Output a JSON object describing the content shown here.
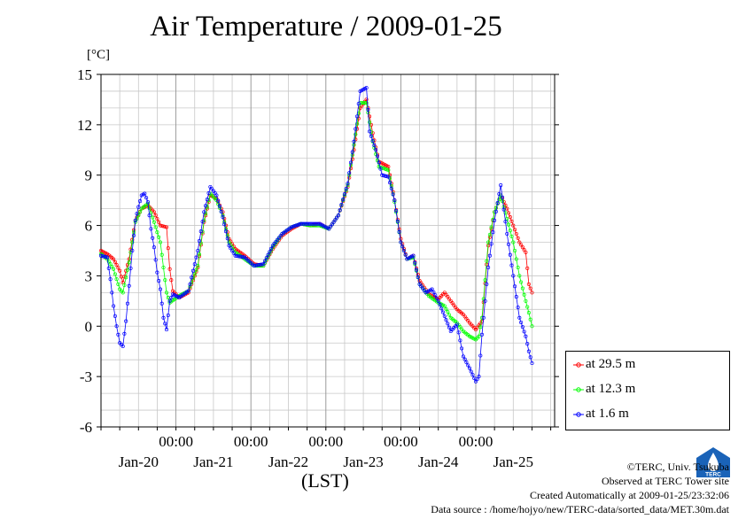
{
  "chart_data": {
    "type": "line",
    "title": "Air Temperature / 2009-01-25",
    "unit": "[°C]",
    "xlabel": "(LST)",
    "ylim": [
      -6,
      15
    ],
    "yticks": [
      15,
      12,
      9,
      6,
      3,
      0,
      -3,
      -6
    ],
    "xticks": [
      {
        "time": "00:00",
        "date": "Jan-20"
      },
      {
        "time": "00:00",
        "date": "Jan-21"
      },
      {
        "time": "00:00",
        "date": "Jan-22"
      },
      {
        "time": "00:00",
        "date": "Jan-23"
      },
      {
        "time": "00:00",
        "date": "Jan-24"
      },
      {
        "time": "00:00",
        "date": "Jan-25"
      }
    ],
    "x_range_hours": [
      0,
      144
    ],
    "grid": true,
    "legend_position": "right",
    "series": [
      {
        "name": "at 29.5 m",
        "color": "#ff0000",
        "points": [
          [
            0,
            4.5
          ],
          [
            2,
            4.3
          ],
          [
            4,
            4.0
          ],
          [
            6,
            3.3
          ],
          [
            7,
            2.6
          ],
          [
            9,
            4.0
          ],
          [
            11,
            6.3
          ],
          [
            13,
            7.0
          ],
          [
            15,
            7.2
          ],
          [
            17,
            6.8
          ],
          [
            19,
            6.0
          ],
          [
            21,
            5.9
          ],
          [
            22,
            3.4
          ],
          [
            23,
            2.1
          ],
          [
            25,
            1.7
          ],
          [
            28,
            2.0
          ],
          [
            31,
            3.5
          ],
          [
            33,
            6.2
          ],
          [
            35,
            7.8
          ],
          [
            37,
            7.6
          ],
          [
            39,
            6.8
          ],
          [
            41,
            5.2
          ],
          [
            43,
            4.6
          ],
          [
            46,
            4.2
          ],
          [
            49,
            3.7
          ],
          [
            52,
            3.6
          ],
          [
            55,
            4.6
          ],
          [
            58,
            5.4
          ],
          [
            61,
            5.8
          ],
          [
            64,
            6.1
          ],
          [
            67,
            6.0
          ],
          [
            70,
            6.1
          ],
          [
            73,
            5.8
          ],
          [
            76,
            6.6
          ],
          [
            79,
            8.3
          ],
          [
            81,
            10.5
          ],
          [
            83,
            13.0
          ],
          [
            85,
            13.5
          ],
          [
            87,
            11.5
          ],
          [
            89,
            9.8
          ],
          [
            92,
            9.5
          ],
          [
            94,
            7.5
          ],
          [
            96,
            5.2
          ],
          [
            98,
            4.0
          ],
          [
            100,
            4.2
          ],
          [
            102,
            2.7
          ],
          [
            105,
            1.9
          ],
          [
            108,
            1.6
          ],
          [
            110,
            2.0
          ],
          [
            112,
            1.5
          ],
          [
            114,
            1.0
          ],
          [
            116,
            0.7
          ],
          [
            118,
            0.2
          ],
          [
            120,
            -0.2
          ],
          [
            122,
            0.3
          ],
          [
            124,
            4.8
          ],
          [
            126,
            6.8
          ],
          [
            128,
            7.8
          ],
          [
            130,
            7.0
          ],
          [
            132,
            6.0
          ],
          [
            134,
            5.0
          ],
          [
            136,
            4.4
          ],
          [
            137,
            2.5
          ],
          [
            138,
            2.0
          ]
        ]
      },
      {
        "name": "at 12.3 m",
        "color": "#00ff00",
        "points": [
          [
            0,
            4.3
          ],
          [
            2,
            4.0
          ],
          [
            4,
            3.4
          ],
          [
            6,
            2.2
          ],
          [
            7,
            2.0
          ],
          [
            9,
            3.8
          ],
          [
            11,
            6.2
          ],
          [
            13,
            7.0
          ],
          [
            15,
            7.3
          ],
          [
            17,
            6.2
          ],
          [
            19,
            5.0
          ],
          [
            20,
            3.5
          ],
          [
            21,
            2.0
          ],
          [
            22,
            1.4
          ],
          [
            25,
            1.8
          ],
          [
            28,
            2.1
          ],
          [
            31,
            3.6
          ],
          [
            33,
            6.3
          ],
          [
            35,
            7.9
          ],
          [
            37,
            7.5
          ],
          [
            39,
            6.6
          ],
          [
            41,
            5.0
          ],
          [
            43,
            4.4
          ],
          [
            46,
            4.0
          ],
          [
            49,
            3.6
          ],
          [
            52,
            3.6
          ],
          [
            55,
            4.7
          ],
          [
            58,
            5.5
          ],
          [
            61,
            5.9
          ],
          [
            64,
            6.1
          ],
          [
            67,
            6.0
          ],
          [
            70,
            6.0
          ],
          [
            73,
            5.8
          ],
          [
            76,
            6.6
          ],
          [
            79,
            8.4
          ],
          [
            81,
            10.8
          ],
          [
            83,
            13.3
          ],
          [
            85,
            13.3
          ],
          [
            87,
            11.0
          ],
          [
            89,
            9.5
          ],
          [
            92,
            9.3
          ],
          [
            94,
            7.4
          ],
          [
            96,
            5.0
          ],
          [
            98,
            4.0
          ],
          [
            100,
            4.1
          ],
          [
            102,
            2.5
          ],
          [
            105,
            1.8
          ],
          [
            108,
            1.4
          ],
          [
            110,
            1.2
          ],
          [
            112,
            0.5
          ],
          [
            114,
            0.2
          ],
          [
            116,
            -0.3
          ],
          [
            118,
            -0.6
          ],
          [
            120,
            -0.8
          ],
          [
            121,
            -0.6
          ],
          [
            122,
            0.5
          ],
          [
            124,
            5.0
          ],
          [
            126,
            6.8
          ],
          [
            128,
            7.8
          ],
          [
            130,
            6.4
          ],
          [
            132,
            5.0
          ],
          [
            134,
            3.0
          ],
          [
            136,
            1.5
          ],
          [
            137,
            0.8
          ],
          [
            138,
            0.0
          ]
        ]
      },
      {
        "name": "at 1.6 m",
        "color": "#0000ff",
        "points": [
          [
            0,
            4.2
          ],
          [
            2,
            4.1
          ],
          [
            3,
            2.8
          ],
          [
            4,
            1.2
          ],
          [
            5,
            0.0
          ],
          [
            6,
            -1.0
          ],
          [
            7,
            -1.2
          ],
          [
            8,
            0.3
          ],
          [
            10,
            4.5
          ],
          [
            11,
            6.3
          ],
          [
            12,
            7.1
          ],
          [
            13,
            7.8
          ],
          [
            14,
            7.9
          ],
          [
            15,
            7.4
          ],
          [
            16,
            5.8
          ],
          [
            17,
            4.7
          ],
          [
            18,
            3.2
          ],
          [
            19,
            2.2
          ],
          [
            20,
            0.5
          ],
          [
            21,
            -0.2
          ],
          [
            22,
            1.5
          ],
          [
            23,
            1.9
          ],
          [
            25,
            1.7
          ],
          [
            28,
            2.1
          ],
          [
            31,
            4.5
          ],
          [
            33,
            6.8
          ],
          [
            35,
            8.3
          ],
          [
            37,
            7.8
          ],
          [
            39,
            6.5
          ],
          [
            41,
            4.8
          ],
          [
            43,
            4.2
          ],
          [
            46,
            4.1
          ],
          [
            49,
            3.6
          ],
          [
            52,
            3.7
          ],
          [
            55,
            4.8
          ],
          [
            58,
            5.5
          ],
          [
            61,
            5.9
          ],
          [
            64,
            6.1
          ],
          [
            67,
            6.1
          ],
          [
            70,
            6.1
          ],
          [
            73,
            5.8
          ],
          [
            76,
            6.6
          ],
          [
            79,
            8.5
          ],
          [
            81,
            11.0
          ],
          [
            83,
            14.0
          ],
          [
            85,
            14.2
          ],
          [
            86,
            11.6
          ],
          [
            88,
            10.5
          ],
          [
            90,
            9.0
          ],
          [
            92,
            8.9
          ],
          [
            94,
            7.5
          ],
          [
            96,
            5.0
          ],
          [
            98,
            4.0
          ],
          [
            100,
            4.2
          ],
          [
            102,
            2.5
          ],
          [
            104,
            2.0
          ],
          [
            106,
            2.2
          ],
          [
            108,
            1.5
          ],
          [
            110,
            0.6
          ],
          [
            112,
            -0.3
          ],
          [
            114,
            0.1
          ],
          [
            116,
            -1.8
          ],
          [
            118,
            -2.5
          ],
          [
            120,
            -3.3
          ],
          [
            121,
            -3.0
          ],
          [
            122,
            -0.5
          ],
          [
            124,
            3.5
          ],
          [
            126,
            6.3
          ],
          [
            128,
            8.4
          ],
          [
            130,
            5.5
          ],
          [
            132,
            3.0
          ],
          [
            134,
            0.5
          ],
          [
            136,
            -0.6
          ],
          [
            137,
            -1.5
          ],
          [
            138,
            -2.2
          ]
        ]
      }
    ]
  },
  "credits": {
    "copyright": "©TERC, Univ. Tsukuba",
    "observed": "Observed at TERC Tower site",
    "created": "Created Automatically at 2009-01-25/23:32:06",
    "source": "Data source : /home/hojyo/new/TERC-data/sorted_data/MET.30m.dat"
  },
  "logo": {
    "text": "TERC",
    "color": "#1a63b8"
  }
}
